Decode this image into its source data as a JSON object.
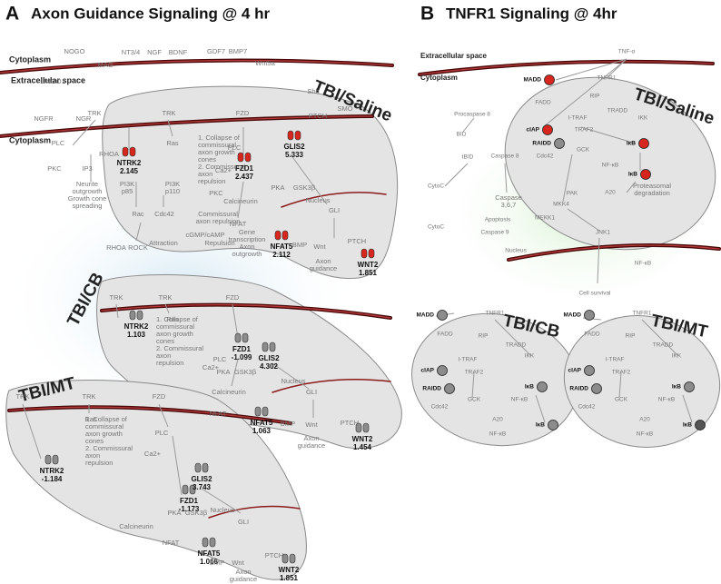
{
  "panel_a": {
    "letter": "A",
    "title": "Axon Guidance Signaling @ 4 hr",
    "compartments": [
      "Cytoplasm",
      "Extracellular space",
      "Cytoplasm"
    ],
    "saline": {
      "label": "TBI/Saline",
      "color": "#d7261e",
      "nodes": [
        {
          "text": "NOGO"
        },
        {
          "text": "MAG"
        },
        {
          "text": "LINGO1"
        },
        {
          "text": "NT3/4"
        },
        {
          "text": "NGF"
        },
        {
          "text": "BDNF"
        },
        {
          "text": "GDF7"
        },
        {
          "text": "BMP7"
        },
        {
          "text": "Wnt5a"
        },
        {
          "text": "NGFR"
        },
        {
          "text": "NGR"
        },
        {
          "text": "TRK"
        },
        {
          "text": "TRK"
        },
        {
          "text": "FZD"
        },
        {
          "text": "Shh"
        },
        {
          "text": "PTCH"
        },
        {
          "text": "SMO"
        },
        {
          "text": "PLC"
        },
        {
          "text": "PKC"
        },
        {
          "text": "IP3"
        },
        {
          "text": "RHOA"
        },
        {
          "text": "Ras"
        },
        {
          "text": "NTRK2",
          "value": 2.145
        },
        {
          "lines": [
            "Neurite",
            "outgrowth",
            "Growth cone",
            "spreading"
          ]
        },
        {
          "lines": [
            "PI3K",
            "p85"
          ]
        },
        {
          "lines": [
            "PI3K",
            "p110"
          ]
        },
        {
          "text": "Rac"
        },
        {
          "text": "Cdc42"
        },
        {
          "text": "RHOA"
        },
        {
          "text": "ROCK"
        },
        {
          "lines": [
            "1. Collapse of",
            "commissural",
            "axon growth",
            "cones",
            "2. Commissural",
            "axon",
            "repulsion"
          ]
        },
        {
          "text": "PLC"
        },
        {
          "text": "FZD1",
          "value": 2.437
        },
        {
          "text": "Ca2+"
        },
        {
          "text": "PKC"
        },
        {
          "text": "Calcineurin"
        },
        {
          "lines": [
            "Commissural",
            "axon repulsion"
          ]
        },
        {
          "text": "NFAT"
        },
        {
          "lines": [
            "Gene",
            "transcription",
            "Axon",
            "outgrowth"
          ]
        },
        {
          "text": "NFAT5",
          "value": 2.112
        },
        {
          "text": "cGMP/cAMP"
        },
        {
          "text": "Attraction"
        },
        {
          "text": "Repulsion"
        },
        {
          "text": "GLIS2",
          "value": 5.333
        },
        {
          "text": "PKA"
        },
        {
          "text": "GSK3β"
        },
        {
          "text": "Nucleus"
        },
        {
          "text": "GLI"
        },
        {
          "text": "BMP"
        },
        {
          "text": "Wnt"
        },
        {
          "text": "PTCH"
        },
        {
          "lines": [
            "Axon",
            "guidance"
          ]
        },
        {
          "text": "WNT2",
          "value": 1.851
        }
      ]
    },
    "cb": {
      "label": "TBI/CB",
      "color": "#8c8c8c",
      "nodes": [
        {
          "text": "TRK"
        },
        {
          "text": "TRK"
        },
        {
          "text": "FZD"
        },
        {
          "text": "Ras"
        },
        {
          "text": "NTRK2",
          "value": 1.103
        },
        {
          "lines": [
            "1. Collapse of",
            "commissural",
            "axon growth",
            "cones",
            "2. Commissural",
            "axon",
            "repulsion"
          ]
        },
        {
          "text": "PLC"
        },
        {
          "text": "Ca2+"
        },
        {
          "text": "FZD1",
          "value": -1.099
        },
        {
          "text": "Calcineurin"
        },
        {
          "text": "NFAT"
        },
        {
          "text": "NFAT5",
          "value": 1.063
        },
        {
          "text": "GLIS2",
          "value": 4.302
        },
        {
          "text": "PKA"
        },
        {
          "text": "GSK3β"
        },
        {
          "text": "Nucleus"
        },
        {
          "text": "GLI"
        },
        {
          "text": "BMP"
        },
        {
          "text": "Wnt"
        },
        {
          "text": "PTCH"
        },
        {
          "lines": [
            "Axon",
            "guidance"
          ]
        },
        {
          "text": "WNT2",
          "value": 1.454
        }
      ]
    },
    "mt": {
      "label": "TBI/MT",
      "color": "#8c8c8c",
      "nodes": [
        {
          "text": "TRK"
        },
        {
          "text": "TRK"
        },
        {
          "text": "FZD"
        },
        {
          "text": "Ras"
        },
        {
          "text": "NTRK2",
          "value": -1.184
        },
        {
          "lines": [
            "1. Collapse of",
            "commissural",
            "axon growth",
            "cones",
            "2. Commissural",
            "axon",
            "repulsion"
          ]
        },
        {
          "text": "PLC"
        },
        {
          "text": "Ca2+"
        },
        {
          "text": "FZD1",
          "value": -1.173
        },
        {
          "text": "Calcineurin"
        },
        {
          "text": "NFAT"
        },
        {
          "text": "NFAT5",
          "value": 1.066
        },
        {
          "text": "GLIS2",
          "value": 3.743
        },
        {
          "text": "PKA"
        },
        {
          "text": "GSK3β"
        },
        {
          "text": "Nucleus"
        },
        {
          "text": "GLI"
        },
        {
          "text": "BMP"
        },
        {
          "text": "Wnt"
        },
        {
          "text": "PTCH"
        },
        {
          "lines": [
            "Axon",
            "guidance"
          ]
        },
        {
          "text": "WNT2",
          "value": 1.851
        }
      ]
    }
  },
  "panel_b": {
    "letter": "B",
    "title": "TNFR1 Signaling @ 4hr",
    "compartments": [
      "Extracellular space",
      "Cytoplasm"
    ],
    "saline": {
      "label": "TBI/Saline",
      "nodes": [
        {
          "text": "TNF-α"
        },
        {
          "text": "MADD",
          "color": "#d7261e"
        },
        {
          "text": "FADD"
        },
        {
          "text": "TNFR1"
        },
        {
          "text": "RIP"
        },
        {
          "text": "TRADD"
        },
        {
          "text": "cIAP",
          "color": "#d7261e"
        },
        {
          "text": "I-TRAF"
        },
        {
          "text": "TRAF2"
        },
        {
          "text": "RAIDD",
          "color": "#8c8c8c"
        },
        {
          "text": "IKK"
        },
        {
          "text": "IκB",
          "color": "#d7261e"
        },
        {
          "text": "Cdc42"
        },
        {
          "text": "GCK"
        },
        {
          "text": "NF-κB"
        },
        {
          "text": "IκB",
          "color": "#d7261e"
        },
        {
          "text": "A20"
        },
        {
          "lines": [
            "Proteasomal",
            "degradation"
          ]
        },
        {
          "text": "PAK"
        },
        {
          "text": "MKK4"
        },
        {
          "text": "MEKK1"
        },
        {
          "text": "JNK1"
        },
        {
          "text": "Procaspase 8"
        },
        {
          "text": "BID"
        },
        {
          "text": "tBID"
        },
        {
          "text": "CytoC"
        },
        {
          "text": "Caspase 8"
        },
        {
          "lines": [
            "Caspase",
            "3,6,7"
          ]
        },
        {
          "text": "Apoptosis"
        },
        {
          "text": "Caspase 9"
        },
        {
          "text": "CytoC"
        },
        {
          "text": "Nucleus"
        },
        {
          "text": "NF-κB"
        },
        {
          "text": "Cell survival"
        }
      ]
    },
    "cb": {
      "label": "TBI/CB",
      "nodes": [
        {
          "text": "MADD",
          "color": "#8c8c8c"
        },
        {
          "text": "FADD"
        },
        {
          "text": "TNFR1"
        },
        {
          "text": "RIP"
        },
        {
          "text": "TRADD"
        },
        {
          "text": "cIAP",
          "color": "#8c8c8c"
        },
        {
          "text": "I-TRAF"
        },
        {
          "text": "TRAF2"
        },
        {
          "text": "RAIDD",
          "color": "#8c8c8c"
        },
        {
          "text": "IKK"
        },
        {
          "text": "IκB",
          "color": "#8c8c8c"
        },
        {
          "text": "NF-κB"
        },
        {
          "text": "GCK"
        },
        {
          "text": "Cdc42"
        },
        {
          "text": "A20"
        },
        {
          "text": "NF-κB"
        },
        {
          "text": "IκB",
          "color": "#8c8c8c"
        }
      ]
    },
    "mt": {
      "label": "TBI/MT",
      "nodes": [
        {
          "text": "MADD",
          "color": "#8c8c8c"
        },
        {
          "text": "FADD"
        },
        {
          "text": "TNFR1"
        },
        {
          "text": "RIP"
        },
        {
          "text": "TRADD"
        },
        {
          "text": "cIAP",
          "color": "#8c8c8c"
        },
        {
          "text": "I-TRAF"
        },
        {
          "text": "TRAF2"
        },
        {
          "text": "RAIDD",
          "color": "#8c8c8c"
        },
        {
          "text": "IKK"
        },
        {
          "text": "IκB",
          "color": "#8c8c8c"
        },
        {
          "text": "NF-κB"
        },
        {
          "text": "GCK"
        },
        {
          "text": "Cdc42"
        },
        {
          "text": "A20"
        },
        {
          "text": "NF-κB"
        },
        {
          "text": "IκB",
          "color": "#555555"
        }
      ]
    }
  }
}
